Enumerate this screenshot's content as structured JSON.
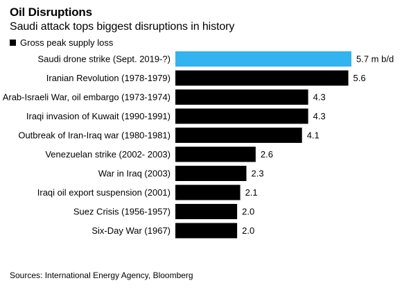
{
  "header": {
    "title": "Oil Disruptions",
    "subtitle": "Saudi attack tops biggest disruptions in history"
  },
  "legend": {
    "label": "Gross peak supply loss"
  },
  "source": "Sources: International Energy Agency, Bloomberg",
  "colors": {
    "highlight": "#33b3f0",
    "bar": "#000000"
  },
  "chart_data": {
    "type": "bar",
    "orientation": "horizontal",
    "categories": [
      "Saudi drone strike (Sept. 2019-?)",
      "Iranian Revolution (1978-1979)",
      "Arab-Israeli War, oil embargo (1973-1974)",
      "Iraqi invasion of Kuwait (1990-1991)",
      "Outbreak of Iran-Iraq war (1980-1981)",
      "Venezuelan strike (2002- 2003)",
      "War in Iraq (2003)",
      "Iraqi oil export suspension (2001)",
      "Suez Crisis (1956-1957)",
      "Six-Day War (1967)"
    ],
    "series": [
      {
        "name": "Gross peak supply loss",
        "values": [
          5.7,
          5.6,
          4.3,
          4.3,
          4.1,
          2.6,
          2.3,
          2.1,
          2.0,
          2.0
        ]
      }
    ],
    "value_labels": [
      "5.7 m b/d",
      "5.6",
      "4.3",
      "4.3",
      "4.1",
      "2.6",
      "2.3",
      "2.1",
      "2.0",
      "2.0"
    ],
    "highlight_index": 0,
    "xlim": [
      0,
      5.7
    ],
    "grid": false,
    "legend_position": "top-left"
  }
}
